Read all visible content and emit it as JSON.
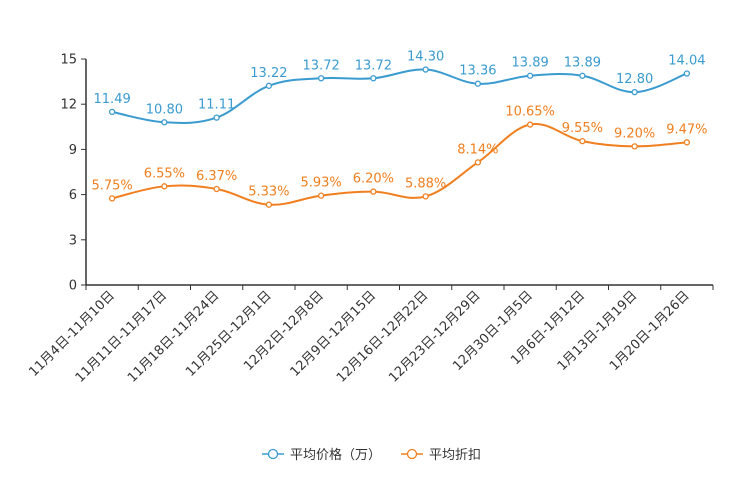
{
  "chart_data": {
    "type": "line",
    "categories": [
      "11月4日-11月10日",
      "11月11日-11月17日",
      "11月18日-11月24日",
      "11月25日-12月1日",
      "12月2日-12月8日",
      "12月9日-12月15日",
      "12月16日-12月22日",
      "12月23日-12月29日",
      "12月30日-1月5日",
      "1月6日-1月12日",
      "1月13日-1月19日",
      "1月20日-1月26日"
    ],
    "ylim": [
      0,
      15
    ],
    "yticks": [
      0,
      3,
      6,
      9,
      12,
      15
    ],
    "ytick_labels": [
      "0",
      "3",
      "6",
      "9",
      "12",
      "15"
    ],
    "series": [
      {
        "name": "平均价格（万）",
        "color": "#3a9bd0",
        "values": [
          11.49,
          10.8,
          11.11,
          13.22,
          13.72,
          13.72,
          14.3,
          13.36,
          13.89,
          13.89,
          12.8,
          14.04
        ],
        "value_labels": [
          "11.49",
          "10.80",
          "11.11",
          "13.22",
          "13.72",
          "13.72",
          "14.30",
          "13.36",
          "13.89",
          "13.89",
          "12.80",
          "14.04"
        ]
      },
      {
        "name": "平均折扣",
        "color": "#f07f1f",
        "values": [
          5.75,
          6.55,
          6.37,
          5.33,
          5.93,
          6.2,
          5.88,
          8.14,
          10.65,
          9.55,
          9.2,
          9.47
        ],
        "value_labels": [
          "5.75%",
          "6.55%",
          "6.37%",
          "5.33%",
          "5.93%",
          "6.20%",
          "5.88%",
          "8.14%",
          "10.65%",
          "9.55%",
          "9.20%",
          "9.47%"
        ]
      }
    ],
    "legend_position": "bottom-center",
    "grid": false
  }
}
